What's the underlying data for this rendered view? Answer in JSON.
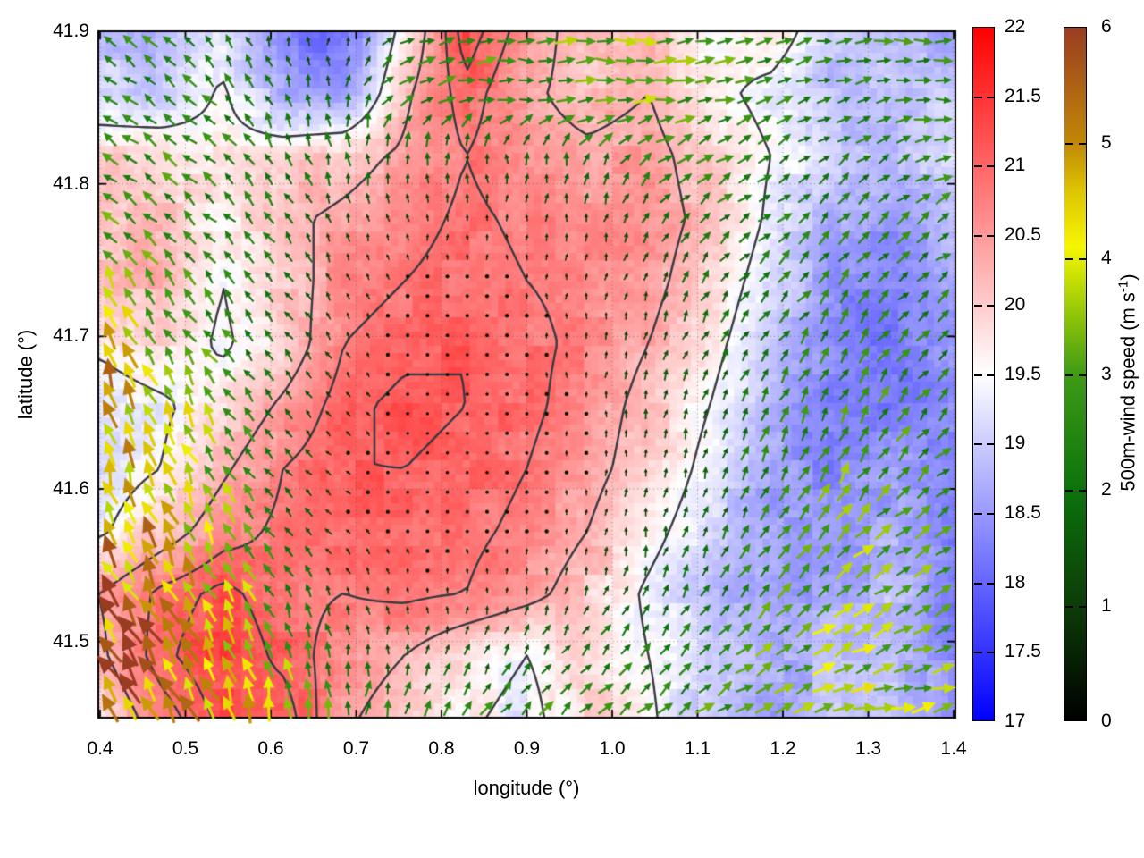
{
  "figure": {
    "background": "#ffffff"
  },
  "axes": {
    "xlabel": "longitude (°)",
    "ylabel": "latitude (°)",
    "x_range": [
      0.4,
      1.4
    ],
    "y_range": [
      41.45,
      41.9
    ],
    "xtick_values": [
      0.4,
      0.5,
      0.6,
      0.7,
      0.8,
      0.9,
      1.0,
      1.1,
      1.2,
      1.3,
      1.4
    ],
    "xtick_labels": [
      "0.4",
      "0.5",
      "0.6",
      "0.7",
      "0.8",
      "0.9",
      "1.0",
      "1.1",
      "1.2",
      "1.3",
      "1.4"
    ],
    "ytick_values": [
      41.5,
      41.6,
      41.7,
      41.8,
      41.9
    ],
    "ytick_labels": [
      "41.5",
      "41.6",
      "41.7",
      "41.8",
      "41.9"
    ],
    "grid_style": "dotted",
    "border_color": "#000000"
  },
  "colorbars": [
    {
      "id": "temperature",
      "range": [
        17,
        22
      ],
      "tick_values": [
        17,
        17.5,
        18,
        18.5,
        19,
        19.5,
        20,
        20.5,
        21,
        21.5,
        22
      ],
      "tick_labels": [
        "17",
        "17.5",
        "18",
        "18.5",
        "19",
        "19.5",
        "20",
        "20.5",
        "21",
        "21.5",
        "22"
      ],
      "gradient_stops": [
        [
          17,
          "#0000ff"
        ],
        [
          19.5,
          "#ffffff"
        ],
        [
          22,
          "#ff0000"
        ]
      ]
    },
    {
      "id": "wind_speed",
      "range": [
        0,
        6
      ],
      "tick_values": [
        0,
        1,
        2,
        3,
        4,
        5,
        6
      ],
      "tick_labels": [
        "0",
        "1",
        "2",
        "3",
        "4",
        "5",
        "6"
      ],
      "gradient_stops": [
        [
          0,
          "#000000"
        ],
        [
          1,
          "#0d3c08"
        ],
        [
          2,
          "#0c730c"
        ],
        [
          3,
          "#3f9b16"
        ],
        [
          3.5,
          "#8fc408"
        ],
        [
          4.1,
          "#f6f600"
        ],
        [
          4.6,
          "#ddc303"
        ],
        [
          5,
          "#c08806"
        ],
        [
          6,
          "#9a3c22"
        ]
      ],
      "label_main": "500m-wind speed (m s",
      "label_sup": "-1",
      "label_close": ")"
    }
  ],
  "chart_data": {
    "type": "heatmap",
    "layers": [
      "temperature-heatmap",
      "temperature-contours",
      "wind-vector-field"
    ],
    "xlabel": "longitude (°)",
    "ylabel": "latitude (°)",
    "x_range": [
      0.4,
      1.4
    ],
    "y_range": [
      41.45,
      41.9
    ],
    "grid_lon": [
      0.4,
      0.471,
      0.543,
      0.614,
      0.686,
      0.757,
      0.829,
      0.9,
      0.971,
      1.043,
      1.114,
      1.186,
      1.257,
      1.329,
      1.4
    ],
    "grid_lat": [
      41.9,
      41.859,
      41.818,
      41.777,
      41.736,
      41.695,
      41.655,
      41.614,
      41.573,
      41.532,
      41.491,
      41.45
    ],
    "temperature_c": {
      "range": [
        17,
        22
      ],
      "values": [
        [
          18.9,
          18.8,
          19.2,
          18.2,
          17.9,
          19.8,
          21.3,
          20.6,
          20.0,
          20.2,
          19.6,
          19.9,
          19.0,
          18.7,
          18.6
        ],
        [
          19.1,
          18.9,
          19.6,
          18.6,
          18.5,
          20.2,
          21.0,
          20.4,
          20.1,
          20.3,
          19.7,
          19.3,
          18.8,
          18.9,
          19.0
        ],
        [
          19.9,
          20.0,
          19.7,
          19.9,
          20.1,
          20.4,
          20.8,
          20.5,
          20.4,
          20.5,
          20.0,
          19.5,
          19.0,
          18.8,
          19.2
        ],
        [
          20.2,
          20.1,
          19.6,
          20.2,
          20.4,
          20.6,
          20.9,
          20.7,
          20.6,
          20.6,
          20.1,
          19.4,
          18.7,
          18.5,
          18.8
        ],
        [
          20.0,
          20.3,
          19.5,
          20.0,
          20.6,
          20.8,
          21.0,
          20.8,
          20.7,
          20.5,
          19.9,
          19.2,
          18.4,
          18.3,
          18.6
        ],
        [
          19.6,
          19.9,
          19.4,
          19.9,
          20.8,
          21.0,
          21.1,
          20.9,
          20.7,
          20.3,
          19.7,
          19.0,
          18.3,
          18.2,
          18.5
        ],
        [
          19.2,
          19.4,
          19.8,
          20.4,
          21.0,
          21.2,
          21.1,
          20.9,
          20.6,
          20.1,
          19.5,
          18.8,
          18.2,
          18.2,
          18.4
        ],
        [
          19.2,
          19.5,
          20.2,
          20.8,
          21.1,
          21.1,
          21.0,
          20.8,
          20.5,
          20.0,
          19.3,
          18.6,
          18.3,
          18.5,
          18.4
        ],
        [
          19.4,
          20.0,
          20.6,
          20.9,
          21.0,
          21.0,
          20.9,
          20.7,
          20.3,
          19.7,
          19.1,
          18.6,
          18.4,
          18.7,
          18.3
        ],
        [
          20.3,
          20.9,
          21.2,
          20.9,
          20.8,
          20.9,
          20.8,
          20.5,
          20.0,
          19.4,
          18.9,
          18.5,
          18.6,
          18.9,
          18.2
        ],
        [
          20.2,
          21.0,
          21.4,
          21.0,
          20.6,
          20.3,
          19.8,
          19.5,
          19.9,
          19.5,
          19.0,
          18.7,
          18.8,
          18.9,
          18.4
        ],
        [
          19.8,
          20.6,
          21.2,
          21.3,
          20.4,
          20.0,
          19.6,
          19.3,
          20.0,
          19.6,
          18.9,
          18.5,
          18.9,
          19.0,
          18.3
        ]
      ]
    },
    "contour_levels": [
      19.5,
      20.3,
      20.8,
      21.1
    ],
    "wind_speed_ms": {
      "range": [
        0,
        6
      ],
      "values": [
        [
          2.6,
          2.4,
          2.2,
          1.2,
          1.0,
          2.2,
          2.6,
          2.8,
          3.4,
          3.2,
          3.0,
          2.6,
          2.4,
          2.6,
          2.4
        ],
        [
          2.6,
          2.5,
          2.3,
          1.8,
          1.6,
          2.4,
          2.6,
          2.6,
          3.0,
          3.2,
          2.8,
          2.4,
          2.2,
          2.5,
          2.6
        ],
        [
          2.7,
          2.6,
          2.4,
          2.2,
          2.0,
          1.8,
          1.6,
          1.6,
          2.0,
          2.4,
          2.4,
          2.2,
          2.0,
          2.4,
          2.6
        ],
        [
          2.8,
          2.6,
          2.4,
          2.0,
          1.2,
          0.8,
          0.6,
          0.8,
          1.0,
          1.6,
          2.0,
          2.2,
          2.2,
          2.4,
          2.4
        ],
        [
          3.6,
          2.8,
          2.4,
          1.8,
          0.8,
          0.4,
          0.3,
          0.5,
          0.8,
          1.2,
          1.8,
          2.2,
          2.4,
          2.2,
          2.3
        ],
        [
          4.4,
          3.6,
          2.6,
          1.8,
          0.8,
          0.3,
          0.2,
          0.4,
          0.6,
          1.2,
          1.6,
          2.0,
          2.4,
          2.4,
          2.2
        ],
        [
          4.8,
          4.0,
          3.0,
          1.6,
          0.6,
          0.2,
          0.2,
          0.3,
          0.5,
          1.2,
          1.5,
          2.2,
          2.6,
          2.6,
          2.4
        ],
        [
          4.6,
          4.2,
          3.2,
          1.6,
          0.5,
          0.2,
          0.2,
          0.3,
          0.5,
          1.1,
          1.4,
          2.4,
          3.0,
          2.8,
          2.4
        ],
        [
          4.8,
          4.4,
          3.6,
          2.0,
          0.6,
          0.3,
          0.3,
          0.4,
          0.6,
          1.3,
          1.6,
          2.6,
          3.2,
          3.0,
          2.6
        ],
        [
          5.0,
          4.6,
          4.0,
          2.6,
          1.0,
          0.6,
          0.6,
          0.8,
          1.2,
          1.6,
          2.0,
          2.8,
          3.2,
          3.2,
          2.8
        ],
        [
          5.4,
          4.8,
          4.2,
          3.2,
          1.8,
          1.4,
          1.6,
          1.8,
          2.0,
          2.2,
          2.4,
          3.0,
          3.4,
          3.4,
          3.0
        ],
        [
          5.6,
          5.0,
          4.4,
          3.6,
          2.6,
          2.2,
          2.4,
          2.6,
          2.6,
          2.6,
          2.8,
          3.2,
          3.6,
          3.6,
          3.2
        ]
      ]
    },
    "wind_direction_deg_ccw_from_east": {
      "values": [
        [
          140,
          140,
          120,
          100,
          80,
          20,
          10,
          0,
          0,
          0,
          10,
          20,
          10,
          0,
          0
        ],
        [
          145,
          140,
          130,
          110,
          90,
          30,
          10,
          0,
          0,
          0,
          10,
          20,
          20,
          10,
          0
        ],
        [
          145,
          140,
          135,
          120,
          100,
          90,
          90,
          90,
          70,
          40,
          30,
          30,
          40,
          30,
          20
        ],
        [
          140,
          140,
          135,
          125,
          110,
          100,
          90,
          90,
          80,
          60,
          45,
          40,
          50,
          40,
          30
        ],
        [
          115,
          125,
          130,
          125,
          110,
          100,
          90,
          90,
          80,
          70,
          55,
          45,
          55,
          45,
          35
        ],
        [
          110,
          120,
          130,
          130,
          120,
          110,
          100,
          95,
          85,
          75,
          60,
          50,
          60,
          50,
          40
        ],
        [
          105,
          115,
          125,
          135,
          130,
          120,
          110,
          100,
          90,
          80,
          70,
          60,
          65,
          55,
          45
        ],
        [
          105,
          110,
          120,
          130,
          135,
          130,
          120,
          110,
          95,
          85,
          75,
          65,
          60,
          50,
          40
        ],
        [
          115,
          115,
          120,
          125,
          130,
          120,
          110,
          100,
          90,
          80,
          70,
          55,
          50,
          40,
          30
        ],
        [
          120,
          118,
          118,
          115,
          110,
          100,
          90,
          80,
          70,
          65,
          60,
          45,
          40,
          30,
          25
        ],
        [
          125,
          120,
          115,
          105,
          95,
          80,
          65,
          55,
          50,
          45,
          45,
          35,
          30,
          20,
          15
        ],
        [
          128,
          122,
          112,
          100,
          90,
          70,
          55,
          45,
          40,
          35,
          35,
          25,
          20,
          10,
          10
        ]
      ]
    }
  }
}
